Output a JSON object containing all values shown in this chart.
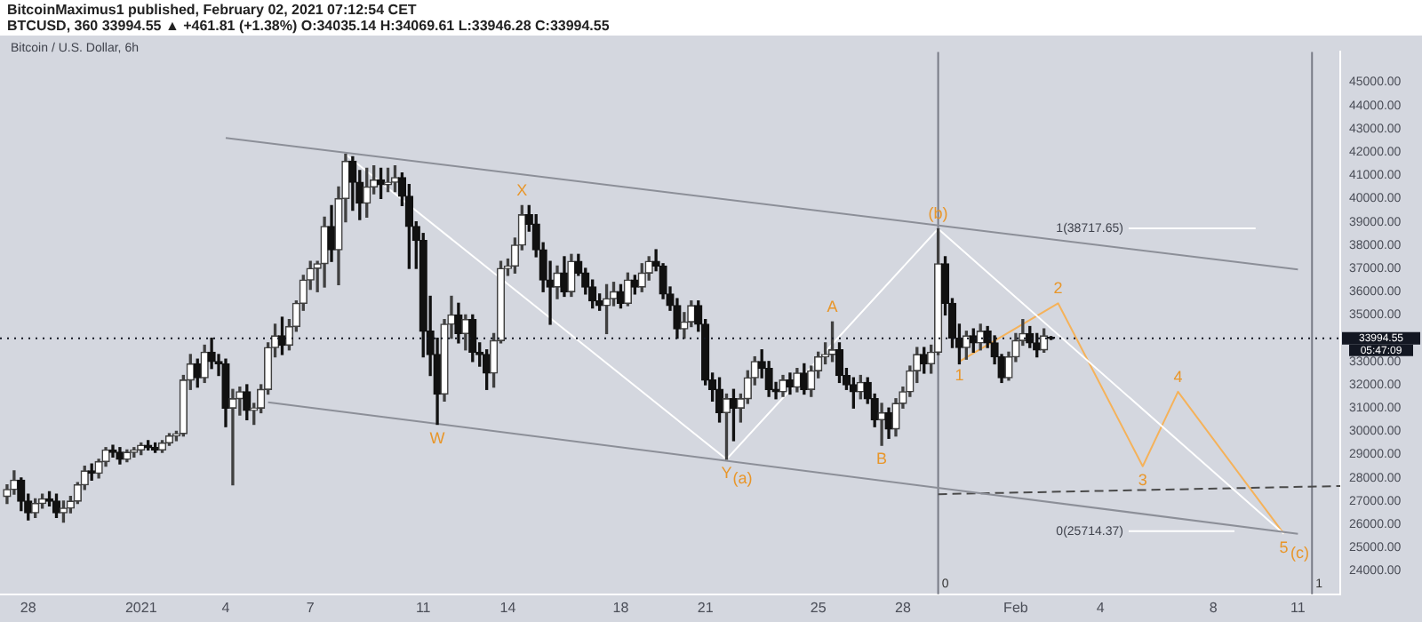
{
  "chart_data": {
    "type": "candlestick",
    "title": "BTCUSD, 360 33994.55 ▲ +461.81 (+1.38%) O:34035.14 H:34069.61 L:33946.28 C:33994.55",
    "subtitle": "Bitcoin / U.S. Dollar, 6h",
    "x": [
      "2020-12-27T06:00",
      "2020-12-27T12:00",
      "2020-12-27T18:00",
      "2020-12-28T00:00",
      "2020-12-28T06:00",
      "2020-12-28T12:00",
      "2020-12-28T18:00",
      "2020-12-29T00:00",
      "2020-12-29T06:00",
      "2020-12-29T12:00",
      "2020-12-29T18:00",
      "2020-12-30T00:00",
      "2020-12-30T06:00",
      "2020-12-30T12:00",
      "2020-12-30T18:00",
      "2020-12-31T00:00",
      "2020-12-31T06:00",
      "2020-12-31T12:00",
      "2020-12-31T18:00",
      "2021-01-01T00:00",
      "2021-01-01T06:00",
      "2021-01-01T12:00",
      "2021-01-01T18:00",
      "2021-01-02T00:00",
      "2021-01-02T06:00",
      "2021-01-02T12:00",
      "2021-01-02T18:00",
      "2021-01-03T00:00",
      "2021-01-03T06:00",
      "2021-01-03T12:00",
      "2021-01-03T18:00",
      "2021-01-04T00:00",
      "2021-01-04T06:00",
      "2021-01-04T12:00",
      "2021-01-04T18:00",
      "2021-01-05T00:00",
      "2021-01-05T06:00",
      "2021-01-05T12:00",
      "2021-01-05T18:00",
      "2021-01-06T00:00",
      "2021-01-06T06:00",
      "2021-01-06T12:00",
      "2021-01-06T18:00",
      "2021-01-07T00:00",
      "2021-01-07T06:00",
      "2021-01-07T12:00",
      "2021-01-07T18:00",
      "2021-01-08T00:00",
      "2021-01-08T06:00",
      "2021-01-08T12:00",
      "2021-01-08T18:00",
      "2021-01-09T00:00",
      "2021-01-09T06:00",
      "2021-01-09T12:00",
      "2021-01-09T18:00",
      "2021-01-10T00:00",
      "2021-01-10T06:00",
      "2021-01-10T12:00",
      "2021-01-10T18:00",
      "2021-01-11T00:00",
      "2021-01-11T06:00",
      "2021-01-11T12:00",
      "2021-01-11T18:00",
      "2021-01-12T00:00",
      "2021-01-12T06:00",
      "2021-01-12T12:00",
      "2021-01-12T18:00",
      "2021-01-13T00:00",
      "2021-01-13T06:00",
      "2021-01-13T12:00",
      "2021-01-13T18:00",
      "2021-01-14T00:00",
      "2021-01-14T06:00",
      "2021-01-14T12:00",
      "2021-01-14T18:00",
      "2021-01-15T00:00",
      "2021-01-15T06:00",
      "2021-01-15T12:00",
      "2021-01-15T18:00",
      "2021-01-16T00:00",
      "2021-01-16T06:00",
      "2021-01-16T12:00",
      "2021-01-16T18:00",
      "2021-01-17T00:00",
      "2021-01-17T06:00",
      "2021-01-17T12:00",
      "2021-01-17T18:00",
      "2021-01-18T00:00",
      "2021-01-18T06:00",
      "2021-01-18T12:00",
      "2021-01-18T18:00",
      "2021-01-19T00:00",
      "2021-01-19T06:00",
      "2021-01-19T12:00",
      "2021-01-19T18:00",
      "2021-01-20T00:00",
      "2021-01-20T06:00",
      "2021-01-20T12:00",
      "2021-01-20T18:00",
      "2021-01-21T00:00",
      "2021-01-21T06:00",
      "2021-01-21T12:00",
      "2021-01-21T18:00",
      "2021-01-22T00:00",
      "2021-01-22T06:00",
      "2021-01-22T12:00",
      "2021-01-22T18:00",
      "2021-01-23T00:00",
      "2021-01-23T06:00",
      "2021-01-23T12:00",
      "2021-01-23T18:00",
      "2021-01-24T00:00",
      "2021-01-24T06:00",
      "2021-01-24T12:00",
      "2021-01-24T18:00",
      "2021-01-25T00:00",
      "2021-01-25T06:00",
      "2021-01-25T12:00",
      "2021-01-25T18:00",
      "2021-01-26T00:00",
      "2021-01-26T06:00",
      "2021-01-26T12:00",
      "2021-01-26T18:00",
      "2021-01-27T00:00",
      "2021-01-27T06:00",
      "2021-01-27T12:00",
      "2021-01-27T18:00",
      "2021-01-28T00:00",
      "2021-01-28T06:00",
      "2021-01-28T12:00",
      "2021-01-28T18:00",
      "2021-01-29T00:00",
      "2021-01-29T06:00",
      "2021-01-29T12:00",
      "2021-01-29T18:00",
      "2021-01-30T00:00",
      "2021-01-30T06:00",
      "2021-01-30T12:00",
      "2021-01-30T18:00",
      "2021-01-31T00:00",
      "2021-01-31T06:00",
      "2021-01-31T12:00",
      "2021-01-31T18:00",
      "2021-02-01T00:00",
      "2021-02-01T06:00",
      "2021-02-01T12:00",
      "2021-02-01T18:00",
      "2021-02-02T00:00",
      "2021-02-02T06:00"
    ],
    "ohlc": [
      [
        27200,
        27700,
        26900,
        27500
      ],
      [
        27500,
        28300,
        27300,
        27900
      ],
      [
        27900,
        28000,
        26600,
        27000
      ],
      [
        27000,
        27300,
        26200,
        26500
      ],
      [
        26500,
        27100,
        26300,
        26900
      ],
      [
        26900,
        27300,
        26700,
        27100
      ],
      [
        27100,
        27400,
        26800,
        27000
      ],
      [
        27000,
        27300,
        26300,
        26500
      ],
      [
        26500,
        27000,
        26100,
        26700
      ],
      [
        26700,
        27200,
        26500,
        27000
      ],
      [
        27000,
        27800,
        26900,
        27700
      ],
      [
        27700,
        28500,
        27500,
        28300
      ],
      [
        28300,
        28600,
        27900,
        28200
      ],
      [
        28200,
        28800,
        28000,
        28700
      ],
      [
        28700,
        29300,
        28500,
        29200
      ],
      [
        29200,
        29400,
        28900,
        29100
      ],
      [
        29100,
        29300,
        28600,
        28800
      ],
      [
        28800,
        29200,
        28700,
        29100
      ],
      [
        29100,
        29300,
        28900,
        29200
      ],
      [
        29200,
        29500,
        29000,
        29400
      ],
      [
        29400,
        29600,
        29200,
        29300
      ],
      [
        29300,
        29500,
        29100,
        29200
      ],
      [
        29200,
        29600,
        29100,
        29500
      ],
      [
        29500,
        29900,
        29400,
        29800
      ],
      [
        29800,
        30000,
        29600,
        29900
      ],
      [
        29900,
        32400,
        29800,
        32200
      ],
      [
        32200,
        33300,
        31800,
        32900
      ],
      [
        32900,
        33100,
        31900,
        32300
      ],
      [
        32300,
        33700,
        32100,
        33400
      ],
      [
        33400,
        34000,
        32700,
        33000
      ],
      [
        33000,
        33300,
        32400,
        32900
      ],
      [
        32900,
        33100,
        30200,
        31000
      ],
      [
        31000,
        31800,
        27700,
        31400
      ],
      [
        31400,
        31900,
        30700,
        31700
      ],
      [
        31700,
        32000,
        30500,
        30900
      ],
      [
        30900,
        31200,
        30300,
        31000
      ],
      [
        31000,
        32000,
        30800,
        31800
      ],
      [
        31800,
        33800,
        31600,
        33600
      ],
      [
        33600,
        34600,
        33200,
        34100
      ],
      [
        34100,
        34900,
        33300,
        33700
      ],
      [
        33700,
        34800,
        33500,
        34500
      ],
      [
        34500,
        35600,
        34300,
        35500
      ],
      [
        35500,
        36700,
        35200,
        36500
      ],
      [
        36500,
        37300,
        36100,
        37000
      ],
      [
        37000,
        37300,
        36000,
        37200
      ],
      [
        37200,
        39200,
        36200,
        38800
      ],
      [
        38800,
        39700,
        37300,
        37800
      ],
      [
        37800,
        40500,
        36300,
        40000
      ],
      [
        40000,
        41900,
        39000,
        41600
      ],
      [
        41600,
        41800,
        39500,
        40700
      ],
      [
        40700,
        41200,
        39100,
        39800
      ],
      [
        39800,
        41300,
        39200,
        40500
      ],
      [
        40500,
        41400,
        40200,
        40800
      ],
      [
        40800,
        41300,
        40000,
        40600
      ],
      [
        40600,
        41300,
        40300,
        40700
      ],
      [
        40700,
        41400,
        40300,
        40900
      ],
      [
        40900,
        41100,
        39700,
        40100
      ],
      [
        40100,
        40600,
        37000,
        38800
      ],
      [
        38800,
        39000,
        37000,
        38200
      ],
      [
        38200,
        38500,
        33200,
        34300
      ],
      [
        34300,
        35800,
        32400,
        33300
      ],
      [
        33300,
        34000,
        30300,
        31600
      ],
      [
        31600,
        34800,
        31300,
        34600
      ],
      [
        34600,
        35800,
        34000,
        35000
      ],
      [
        35000,
        35500,
        33800,
        34200
      ],
      [
        34200,
        35000,
        33500,
        34800
      ],
      [
        34800,
        35000,
        33000,
        33400
      ],
      [
        33400,
        33800,
        32800,
        33300
      ],
      [
        33300,
        33500,
        31800,
        32500
      ],
      [
        32500,
        34200,
        31900,
        33900
      ],
      [
        33900,
        37300,
        33800,
        37000
      ],
      [
        37000,
        37400,
        36700,
        37100
      ],
      [
        37100,
        38300,
        36800,
        38000
      ],
      [
        38000,
        39700,
        37800,
        39300
      ],
      [
        39300,
        39700,
        38600,
        38900
      ],
      [
        38900,
        39300,
        37500,
        37800
      ],
      [
        37800,
        38100,
        36000,
        36500
      ],
      [
        36500,
        37300,
        34600,
        36200
      ],
      [
        36200,
        37100,
        35700,
        36800
      ],
      [
        36800,
        37500,
        35800,
        36000
      ],
      [
        36000,
        37600,
        35800,
        37300
      ],
      [
        37300,
        37600,
        36700,
        36800
      ],
      [
        36800,
        37000,
        35900,
        36200
      ],
      [
        36200,
        36500,
        35300,
        35600
      ],
      [
        35600,
        35900,
        35200,
        35400
      ],
      [
        35400,
        36300,
        34200,
        35700
      ],
      [
        35700,
        36400,
        35400,
        36000
      ],
      [
        36000,
        36300,
        35300,
        35500
      ],
      [
        35500,
        36800,
        35400,
        36500
      ],
      [
        36500,
        36700,
        35900,
        36200
      ],
      [
        36200,
        37200,
        36000,
        36800
      ],
      [
        36800,
        37500,
        36500,
        37300
      ],
      [
        37300,
        37800,
        36900,
        37100
      ],
      [
        37100,
        37200,
        35700,
        35900
      ],
      [
        35900,
        36200,
        35200,
        35400
      ],
      [
        35400,
        35700,
        34000,
        34400
      ],
      [
        34400,
        35100,
        34000,
        34700
      ],
      [
        34700,
        35600,
        34500,
        35400
      ],
      [
        35400,
        35600,
        34300,
        34600
      ],
      [
        34600,
        34800,
        32000,
        32200
      ],
      [
        32200,
        32500,
        31300,
        31800
      ],
      [
        31800,
        32300,
        30400,
        30800
      ],
      [
        30800,
        31600,
        28800,
        31400
      ],
      [
        31400,
        31800,
        29600,
        31000
      ],
      [
        31000,
        31600,
        30400,
        31400
      ],
      [
        31400,
        32600,
        31200,
        32300
      ],
      [
        32300,
        33200,
        32000,
        33000
      ],
      [
        33000,
        33500,
        32300,
        32700
      ],
      [
        32700,
        33000,
        31500,
        31800
      ],
      [
        31800,
        32100,
        31400,
        31700
      ],
      [
        31700,
        32400,
        31500,
        32200
      ],
      [
        32200,
        32500,
        31600,
        31900
      ],
      [
        31900,
        32700,
        31700,
        32500
      ],
      [
        32500,
        32900,
        31600,
        31800
      ],
      [
        31800,
        32800,
        31500,
        32600
      ],
      [
        32600,
        33400,
        32300,
        33200
      ],
      [
        33200,
        33800,
        32900,
        33300
      ],
      [
        33300,
        34700,
        33000,
        33500
      ],
      [
        33500,
        33800,
        32100,
        32400
      ],
      [
        32400,
        32700,
        31800,
        32000
      ],
      [
        32000,
        32300,
        31000,
        31700
      ],
      [
        31700,
        32400,
        31400,
        32100
      ],
      [
        32100,
        32300,
        31200,
        31400
      ],
      [
        31400,
        31600,
        30200,
        30500
      ],
      [
        30500,
        31200,
        29400,
        30800
      ],
      [
        30800,
        31000,
        29700,
        30100
      ],
      [
        30100,
        31400,
        29800,
        31200
      ],
      [
        31200,
        31900,
        31000,
        31700
      ],
      [
        31700,
        32800,
        31500,
        32600
      ],
      [
        32600,
        33600,
        32100,
        33300
      ],
      [
        33300,
        33600,
        32500,
        32900
      ],
      [
        32900,
        33700,
        32500,
        33400
      ],
      [
        33400,
        38700,
        33300,
        37200
      ],
      [
        37200,
        37500,
        35000,
        35500
      ],
      [
        35500,
        35700,
        33600,
        34000
      ],
      [
        34000,
        34600,
        32900,
        33600
      ],
      [
        33600,
        34300,
        33100,
        34100
      ],
      [
        34100,
        34400,
        33400,
        33800
      ],
      [
        33800,
        34600,
        33500,
        34300
      ],
      [
        34300,
        34500,
        33600,
        33800
      ],
      [
        33800,
        34100,
        32900,
        33200
      ],
      [
        33200,
        33300,
        32100,
        32300
      ],
      [
        32300,
        33400,
        32200,
        33200
      ],
      [
        33200,
        34200,
        33000,
        33900
      ],
      [
        33900,
        34800,
        33700,
        34200
      ],
      [
        34200,
        34500,
        33600,
        33800
      ],
      [
        33800,
        34200,
        33200,
        33500
      ],
      [
        33500,
        34400,
        33400,
        34100
      ],
      [
        34035.14,
        34069.61,
        33946.28,
        33994.55
      ]
    ],
    "series": [
      {
        "type": "line",
        "color": "#8c8f98",
        "x": [
          "2021-01-04T00:00",
          "2021-02-11T00:00"
        ],
        "values": [
          42600,
          36950
        ]
      },
      {
        "type": "line",
        "color": "#8c8f98",
        "x": [
          "2021-01-05T12:00",
          "2021-02-11T00:00"
        ],
        "values": [
          31250,
          25600
        ]
      },
      {
        "type": "line",
        "color": "#ffffff",
        "x": [
          "2021-01-08T06:00",
          "2021-01-21T18:00",
          "2021-01-29T06:00",
          "2021-02-10T12:00"
        ],
        "values": [
          41900,
          28800,
          38700,
          25600
        ]
      },
      {
        "type": "line",
        "color": "#f5b25a",
        "x": [
          "2021-01-30T00:00",
          "2021-02-02T12:00",
          "2021-02-05T12:00",
          "2021-02-06T18:00",
          "2021-02-10T12:00"
        ],
        "values": [
          33000,
          35500,
          28500,
          31700,
          25600
        ]
      },
      {
        "type": "line",
        "color": "#4a4a4a",
        "line_style": "dashed",
        "x": [
          "2021-01-29T06:00",
          "2021-02-12T12:00"
        ],
        "values": [
          27300,
          27650
        ]
      },
      {
        "type": "line",
        "name": "1(38717.65)",
        "color": "#ffffff",
        "x": [
          "2021-02-05T00:00",
          "2021-02-09T12:00"
        ],
        "values": [
          38717.65,
          38717.65
        ]
      },
      {
        "type": "line",
        "name": "0(25714.37)",
        "color": "#ffffff",
        "x": [
          "2021-02-05T00:00",
          "2021-02-08T18:00"
        ],
        "values": [
          25714.37,
          25714.37
        ]
      }
    ],
    "ref_lines": [
      {
        "axis": "x",
        "value": "2021-01-29T06:00",
        "label": "0",
        "color": "#787b86"
      },
      {
        "axis": "x",
        "value": "2021-02-11T12:00",
        "label": "1",
        "color": "#787b86"
      },
      {
        "axis": "y",
        "value": 33994.55,
        "label": "33994.55",
        "color": "#131722"
      }
    ],
    "annotations": [
      "BitcoinMaximus1 published, February 02, 2021 07:12:54 CET",
      {
        "text": "W",
        "x": "2021-01-11T12:00",
        "y": 30300
      },
      {
        "text": "X",
        "x": "2021-01-14T12:00",
        "y": 39700
      },
      {
        "text": "Y",
        "x": "2021-01-21T18:00",
        "y": 28800
      },
      {
        "text": "(a)",
        "x": "2021-01-21T18:00",
        "y": 28800
      },
      {
        "text": "A",
        "x": "2021-01-25T12:00",
        "y": 34700
      },
      {
        "text": "B",
        "x": "2021-01-27T06:00",
        "y": 29400
      },
      {
        "text": "(b)",
        "x": "2021-01-29T06:00",
        "y": 38700
      },
      {
        "text": "1",
        "x": "2021-01-30T00:00",
        "y": 33000
      },
      {
        "text": "2",
        "x": "2021-02-02T12:00",
        "y": 35500
      },
      {
        "text": "3",
        "x": "2021-02-05T12:00",
        "y": 28500
      },
      {
        "text": "4",
        "x": "2021-02-06T18:00",
        "y": 31700
      },
      {
        "text": "5",
        "x": "2021-02-10T12:00",
        "y": 25600
      },
      {
        "text": "(c)",
        "x": "2021-02-10T12:00",
        "y": 25600
      },
      "05:47:09"
    ],
    "xlim": [
      "2020-12-27T00:00",
      "2021-02-12T12:00"
    ],
    "xticks": [
      {
        "value": "2020-12-28",
        "label": "28"
      },
      {
        "value": "2021-01-01",
        "label": "2021"
      },
      {
        "value": "2021-01-04",
        "label": "4"
      },
      {
        "value": "2021-01-07",
        "label": "7"
      },
      {
        "value": "2021-01-11",
        "label": "11"
      },
      {
        "value": "2021-01-14",
        "label": "14"
      },
      {
        "value": "2021-01-18",
        "label": "18"
      },
      {
        "value": "2021-01-21",
        "label": "21"
      },
      {
        "value": "2021-01-25",
        "label": "25"
      },
      {
        "value": "2021-01-28",
        "label": "28"
      },
      {
        "value": "2021-02-01",
        "label": "Feb"
      },
      {
        "value": "2021-02-04",
        "label": "4"
      },
      {
        "value": "2021-02-08",
        "label": "8"
      },
      {
        "value": "2021-02-11",
        "label": "11"
      }
    ],
    "ylim": [
      23000,
      46300
    ],
    "yticks": [
      {
        "value": 24000,
        "label": "24000.00"
      },
      {
        "value": 25000,
        "label": "25000.00"
      },
      {
        "value": 26000,
        "label": "26000.00"
      },
      {
        "value": 27000,
        "label": "27000.00"
      },
      {
        "value": 28000,
        "label": "28000.00"
      },
      {
        "value": 29000,
        "label": "29000.00"
      },
      {
        "value": 30000,
        "label": "30000.00"
      },
      {
        "value": 31000,
        "label": "31000.00"
      },
      {
        "value": 32000,
        "label": "32000.00"
      },
      {
        "value": 33000,
        "label": "33000.00"
      },
      {
        "value": 35000,
        "label": "35000.00"
      },
      {
        "value": 36000,
        "label": "36000.00"
      },
      {
        "value": 37000,
        "label": "37000.00"
      },
      {
        "value": 38000,
        "label": "38000.00"
      },
      {
        "value": 39000,
        "label": "39000.00"
      },
      {
        "value": 40000,
        "label": "40000.00"
      },
      {
        "value": 41000,
        "label": "41000.00"
      },
      {
        "value": 42000,
        "label": "42000.00"
      },
      {
        "value": 43000,
        "label": "43000.00"
      },
      {
        "value": 44000,
        "label": "44000.00"
      },
      {
        "value": 45000,
        "label": "45000.00"
      }
    ],
    "grid": false,
    "legend": false
  }
}
